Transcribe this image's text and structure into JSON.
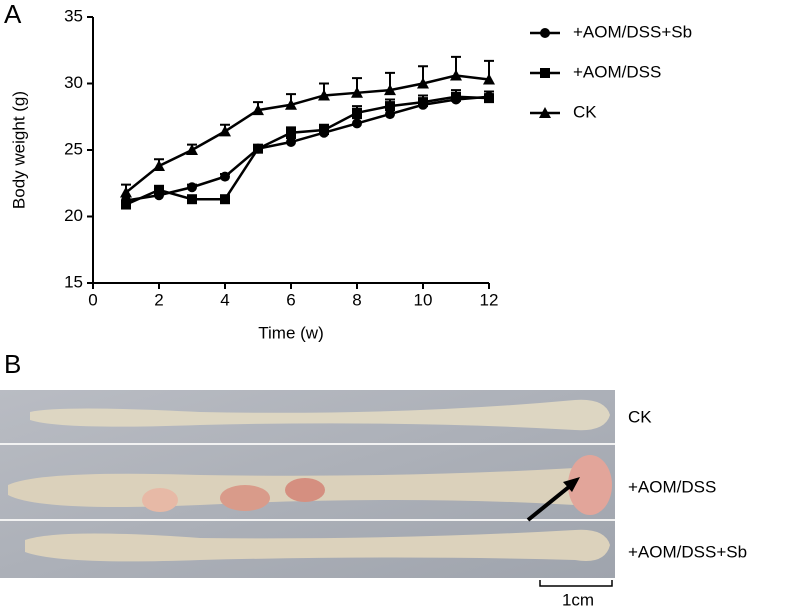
{
  "chart_data": {
    "type": "line",
    "panel_label": "A",
    "x_label": "Time (w)",
    "y_label": "Body weight (g)",
    "x": [
      1,
      2,
      3,
      4,
      5,
      6,
      7,
      8,
      9,
      10,
      11,
      12
    ],
    "series": [
      {
        "name": "+AOM/DSS+Sb",
        "color": "#000000",
        "marker": "circle",
        "values": [
          21.2,
          21.6,
          22.2,
          23.0,
          25.1,
          25.6,
          26.3,
          27.0,
          27.7,
          28.4,
          28.8,
          29.0
        ],
        "errors": [
          0.3,
          0.3,
          0.2,
          0.2,
          0.2,
          0.3,
          0.3,
          0.4,
          0.4,
          0.4,
          0.4,
          0.4
        ]
      },
      {
        "name": "+AOM/DSS",
        "color": "#000000",
        "marker": "square",
        "values": [
          20.9,
          22.0,
          21.3,
          21.3,
          25.1,
          26.3,
          26.5,
          27.8,
          28.3,
          28.6,
          29.0,
          28.9
        ],
        "errors": [
          0.3,
          0.3,
          0.2,
          0.2,
          0.2,
          0.4,
          0.4,
          0.5,
          0.5,
          0.5,
          0.5,
          0.5
        ]
      },
      {
        "name": "CK",
        "color": "#000000",
        "marker": "triangle",
        "values": [
          21.8,
          23.8,
          25.0,
          26.4,
          28.0,
          28.4,
          29.1,
          29.3,
          29.5,
          30.0,
          30.6,
          30.3
        ],
        "errors": [
          0.6,
          0.5,
          0.4,
          0.5,
          0.6,
          0.8,
          0.9,
          1.1,
          1.3,
          1.3,
          1.4,
          1.4
        ]
      }
    ],
    "xlim": [
      0,
      12
    ],
    "xticks": [
      0,
      2,
      4,
      6,
      8,
      10,
      12
    ],
    "ylim": [
      15,
      35
    ],
    "yticks": [
      15,
      20,
      25,
      30,
      35
    ],
    "legend": "top-right"
  },
  "photo": {
    "panel_label": "B",
    "rows": [
      "CK",
      "+AOM/DSS",
      "+AOM/DSS+Sb"
    ],
    "scale_bar": "1cm"
  }
}
